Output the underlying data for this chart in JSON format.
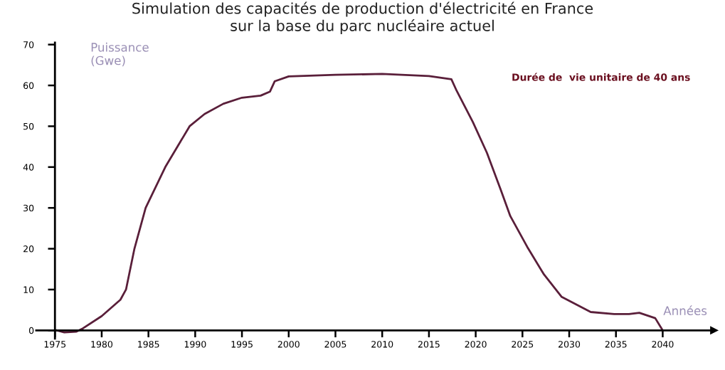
{
  "chart_data": {
    "type": "line",
    "title": "Simulation des capacités de production d'électricité en France\nsur la base du parc nucléaire actuel",
    "ylabel": "Puissance\n(Gwe)",
    "xlabel": "Années",
    "annotations": [
      "Durée de  vie unitaire de 40 ans"
    ],
    "series": [
      {
        "color": "#5a1f3a",
        "x": [
          1975.2,
          1976,
          1977.3,
          1978,
          1980,
          1982,
          1982.6,
          1983.5,
          1984.7,
          1986.8,
          1989.4,
          1991,
          1993,
          1995,
          1997,
          1998,
          1998.5,
          2000,
          2005,
          2010,
          2015,
          2017.4,
          2017.9,
          2019.7,
          2021.2,
          2022.7,
          2023.7,
          2025.5,
          2027.3,
          2029.2,
          2032.3,
          2034.8,
          2036.4,
          2037.5,
          2039.2,
          2040
        ],
        "values": [
          0,
          -0.5,
          -0.3,
          0.5,
          3.5,
          7.5,
          10,
          20,
          30,
          40,
          50,
          53,
          55.5,
          57,
          57.5,
          58.5,
          61,
          62.2,
          62.6,
          62.8,
          62.3,
          61.5,
          59,
          51,
          43.5,
          34.3,
          28,
          20.5,
          13.7,
          8.2,
          4.5,
          4,
          4,
          4.3,
          3,
          0
        ]
      }
    ],
    "xlim": [
      1973,
      2045.5
    ],
    "ylim": [
      -2,
      70.5
    ],
    "xticks": [
      1975,
      1980,
      1985,
      1990,
      1995,
      2000,
      2005,
      2010,
      2015,
      2020,
      2025,
      2030,
      2035,
      2040
    ],
    "yticks": [
      0,
      10,
      20,
      30,
      40,
      50,
      60,
      70
    ],
    "grid": false,
    "legend": false,
    "marker": "none",
    "line_style": "solid"
  }
}
